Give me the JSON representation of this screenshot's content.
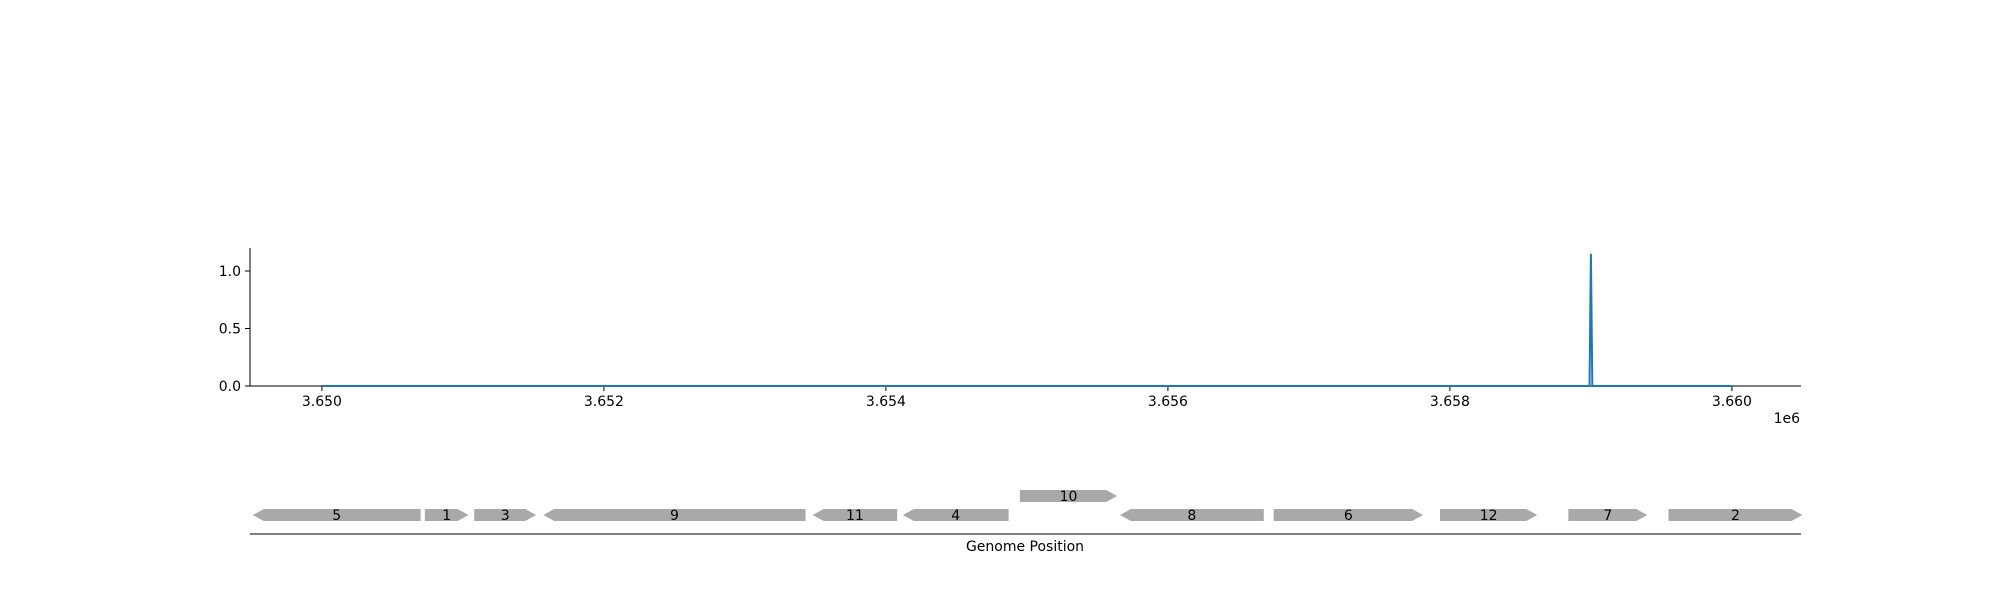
{
  "chart_data": [
    {
      "type": "line",
      "title": "",
      "xlabel": "",
      "ylabel": "",
      "x_offset_label": "1e6",
      "xlim": [
        3.64949,
        3.66049
      ],
      "ylim": [
        0.0,
        1.2
      ],
      "x_tick_values": [
        3.65,
        3.652,
        3.654,
        3.656,
        3.658,
        3.66
      ],
      "x_tick_labels": [
        "3.650",
        "3.652",
        "3.654",
        "3.656",
        "3.658",
        "3.660"
      ],
      "y_tick_values": [
        0.0,
        0.5,
        1.0
      ],
      "y_tick_labels": [
        "0.0",
        "0.5",
        "1.0"
      ],
      "grid": false,
      "color": "#1f77b4",
      "series": [
        {
          "x": [
            3.65,
            3.65899,
            3.659,
            3.65901,
            3.66
          ],
          "y": [
            0.0,
            0.0,
            1.15,
            0.0,
            0.0
          ]
        }
      ]
    },
    {
      "type": "gene-track",
      "xlabel": "Genome Position",
      "color": "#a9a9a9",
      "genes": [
        {
          "label": "5",
          "start": 3.64951,
          "end": 3.6507,
          "strand": "-",
          "row": 0
        },
        {
          "label": "1",
          "start": 3.65073,
          "end": 3.65104,
          "strand": "+",
          "row": 0
        },
        {
          "label": "3",
          "start": 3.65108,
          "end": 3.65152,
          "strand": "+",
          "row": 0
        },
        {
          "label": "9",
          "start": 3.65157,
          "end": 3.65343,
          "strand": "-",
          "row": 0
        },
        {
          "label": "11",
          "start": 3.65348,
          "end": 3.65408,
          "strand": "-",
          "row": 0
        },
        {
          "label": "4",
          "start": 3.65412,
          "end": 3.65487,
          "strand": "-",
          "row": 0
        },
        {
          "label": "10",
          "start": 3.65495,
          "end": 3.65564,
          "strand": "+",
          "row": 1
        },
        {
          "label": "8",
          "start": 3.65566,
          "end": 3.65668,
          "strand": "-",
          "row": 0
        },
        {
          "label": "6",
          "start": 3.65675,
          "end": 3.65781,
          "strand": "+",
          "row": 0
        },
        {
          "label": "12",
          "start": 3.65793,
          "end": 3.65862,
          "strand": "+",
          "row": 0
        },
        {
          "label": "7",
          "start": 3.65884,
          "end": 3.6594,
          "strand": "+",
          "row": 0
        },
        {
          "label": "2",
          "start": 3.65955,
          "end": 3.6605,
          "strand": "+",
          "row": 0
        }
      ]
    }
  ]
}
